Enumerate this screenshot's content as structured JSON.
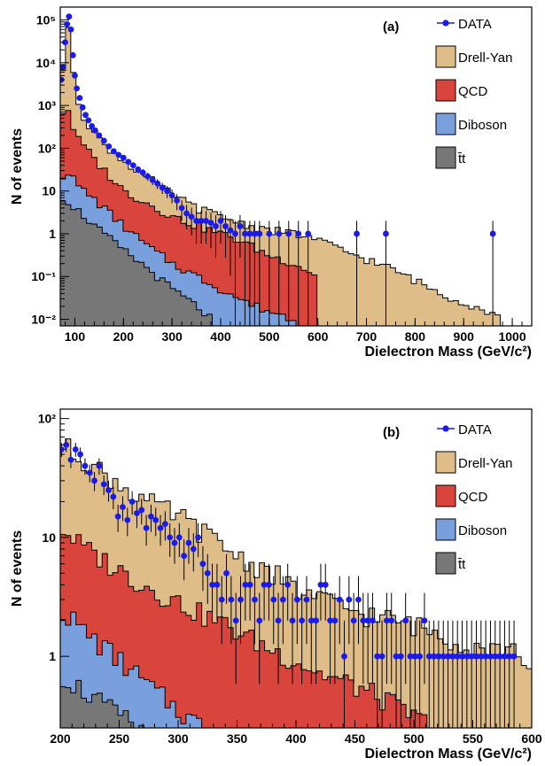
{
  "colors": {
    "drellyan": "#dfbd89",
    "qcd": "#d9453c",
    "diboson": "#7a9fdd",
    "ttbar": "#777777",
    "data": "#1a1aee",
    "outline": "#000000"
  },
  "chart_data": [
    {
      "type": "histogram",
      "panel_label": "(a)",
      "xlabel": "Dielectron Mass (GeV/c²)",
      "ylabel": "N of events",
      "xlim": [
        70,
        1040
      ],
      "ylim": [
        0.007,
        200000
      ],
      "yscale": "log",
      "grid": false,
      "legend_position": "top-right",
      "x_ticks": [
        100,
        200,
        300,
        400,
        500,
        600,
        700,
        800,
        900,
        1000
      ],
      "x_tick_labels": [
        "100",
        "200",
        "300",
        "400",
        "500",
        "600",
        "700",
        "800",
        "900",
        "1000"
      ],
      "y_ticks": [
        0.01,
        0.1,
        1,
        10,
        100,
        1000,
        10000,
        100000
      ],
      "y_tick_labels": [
        "10⁻²",
        "10⁻¹",
        "1",
        "10",
        "10²",
        "10³",
        "10⁴",
        "10⁵"
      ],
      "legend": [
        {
          "name": "DATA",
          "kind": "data"
        },
        {
          "name": "Drell-Yan",
          "kind": "box",
          "color_key": "drellyan"
        },
        {
          "name": "QCD",
          "kind": "box",
          "color_key": "qcd"
        },
        {
          "name": "Diboson",
          "kind": "box",
          "color_key": "diboson"
        },
        {
          "name": "t̄t",
          "kind": "box",
          "color_key": "ttbar"
        }
      ],
      "stack_envelopes": {
        "drellyan": [
          [
            70,
            2000
          ],
          [
            80,
            20000
          ],
          [
            90,
            100000
          ],
          [
            100,
            2000
          ],
          [
            120,
            500
          ],
          [
            150,
            150
          ],
          [
            200,
            50
          ],
          [
            250,
            20
          ],
          [
            300,
            8
          ],
          [
            350,
            4
          ],
          [
            400,
            2.5
          ],
          [
            450,
            1.6
          ],
          [
            500,
            1.2
          ],
          [
            550,
            1.0
          ],
          [
            600,
            0.7
          ],
          [
            650,
            0.4
          ],
          [
            700,
            0.25
          ],
          [
            750,
            0.15
          ],
          [
            800,
            0.08
          ],
          [
            850,
            0.04
          ],
          [
            900,
            0.025
          ],
          [
            950,
            0.015
          ],
          [
            980,
            0.01
          ]
        ],
        "qcd": [
          [
            70,
            500
          ],
          [
            80,
            900
          ],
          [
            90,
            700
          ],
          [
            100,
            200
          ],
          [
            150,
            40
          ],
          [
            200,
            10
          ],
          [
            250,
            5
          ],
          [
            300,
            2.5
          ],
          [
            350,
            1.5
          ],
          [
            400,
            1.0
          ],
          [
            450,
            0.6
          ],
          [
            500,
            0.3
          ],
          [
            550,
            0.2
          ],
          [
            600,
            0.1
          ]
        ],
        "diboson": [
          [
            70,
            20
          ],
          [
            90,
            30
          ],
          [
            100,
            15
          ],
          [
            150,
            5
          ],
          [
            200,
            1.5
          ],
          [
            250,
            0.5
          ],
          [
            300,
            0.2
          ],
          [
            350,
            0.1
          ],
          [
            400,
            0.05
          ],
          [
            450,
            0.025
          ],
          [
            500,
            0.015
          ],
          [
            550,
            0.01
          ]
        ],
        "ttbar": [
          [
            70,
            8
          ],
          [
            100,
            4
          ],
          [
            150,
            1.2
          ],
          [
            200,
            0.4
          ],
          [
            250,
            0.15
          ],
          [
            300,
            0.05
          ],
          [
            350,
            0.02
          ],
          [
            380,
            0.01
          ]
        ]
      },
      "data_points": [
        [
          72,
          4000
        ],
        [
          76,
          8000
        ],
        [
          80,
          30000
        ],
        [
          84,
          80000
        ],
        [
          88,
          120000
        ],
        [
          92,
          60000
        ],
        [
          96,
          15000
        ],
        [
          100,
          5000
        ],
        [
          104,
          2500
        ],
        [
          110,
          1500
        ],
        [
          116,
          900
        ],
        [
          122,
          600
        ],
        [
          128,
          450
        ],
        [
          135,
          330
        ],
        [
          142,
          260
        ],
        [
          150,
          200
        ],
        [
          160,
          150
        ],
        [
          170,
          110
        ],
        [
          180,
          85
        ],
        [
          190,
          70
        ],
        [
          200,
          60
        ],
        [
          210,
          48
        ],
        [
          220,
          40
        ],
        [
          230,
          32
        ],
        [
          240,
          27
        ],
        [
          250,
          22
        ],
        [
          260,
          18
        ],
        [
          270,
          15
        ],
        [
          280,
          12
        ],
        [
          290,
          10
        ],
        [
          300,
          8
        ],
        [
          310,
          6
        ],
        [
          320,
          4
        ],
        [
          330,
          3
        ],
        [
          340,
          2.5
        ],
        [
          350,
          2
        ],
        [
          360,
          2
        ],
        [
          370,
          2
        ],
        [
          380,
          1.8
        ],
        [
          390,
          1.5
        ],
        [
          400,
          2
        ],
        [
          410,
          1.5
        ],
        [
          420,
          1.2
        ],
        [
          430,
          1
        ],
        [
          440,
          1.5
        ],
        [
          450,
          1
        ],
        [
          460,
          1
        ],
        [
          470,
          1
        ],
        [
          480,
          1
        ],
        [
          500,
          1
        ],
        [
          520,
          1
        ],
        [
          540,
          1
        ],
        [
          560,
          1
        ],
        [
          580,
          1
        ],
        [
          680,
          1
        ],
        [
          740,
          1
        ],
        [
          960,
          1
        ]
      ]
    },
    {
      "type": "histogram",
      "panel_label": "(b)",
      "xlabel": "Dielectron Mass (GeV/c²)",
      "ylabel": "N of events",
      "xlim": [
        200,
        600
      ],
      "ylim": [
        0.25,
        120
      ],
      "yscale": "log",
      "grid": false,
      "legend_position": "top-right",
      "x_ticks": [
        200,
        250,
        300,
        350,
        400,
        450,
        500,
        550,
        600
      ],
      "x_tick_labels": [
        "200",
        "250",
        "300",
        "350",
        "400",
        "450",
        "500",
        "550",
        "600"
      ],
      "y_ticks": [
        1,
        10,
        100
      ],
      "y_tick_labels": [
        "1",
        "10",
        "10²"
      ],
      "legend": [
        {
          "name": "DATA",
          "kind": "data"
        },
        {
          "name": "Drell-Yan",
          "kind": "box",
          "color_key": "drellyan"
        },
        {
          "name": "QCD",
          "kind": "box",
          "color_key": "qcd"
        },
        {
          "name": "Diboson",
          "kind": "box",
          "color_key": "diboson"
        },
        {
          "name": "t̄t",
          "kind": "box",
          "color_key": "ttbar"
        }
      ],
      "stack_envelopes": {
        "drellyan": [
          [
            200,
            60
          ],
          [
            220,
            45
          ],
          [
            240,
            32
          ],
          [
            260,
            24
          ],
          [
            280,
            18
          ],
          [
            300,
            15
          ],
          [
            320,
            11
          ],
          [
            340,
            8
          ],
          [
            360,
            6
          ],
          [
            380,
            5
          ],
          [
            400,
            3.5
          ],
          [
            420,
            3
          ],
          [
            440,
            2.5
          ],
          [
            460,
            2.2
          ],
          [
            480,
            2
          ],
          [
            500,
            1.8
          ],
          [
            520,
            1.5
          ],
          [
            540,
            1.3
          ],
          [
            560,
            1.2
          ],
          [
            580,
            1.1
          ],
          [
            600,
            0.9
          ]
        ],
        "qcd": [
          [
            200,
            12
          ],
          [
            220,
            8
          ],
          [
            240,
            6
          ],
          [
            260,
            4.5
          ],
          [
            280,
            3.5
          ],
          [
            300,
            2.8
          ],
          [
            320,
            2.2
          ],
          [
            340,
            1.8
          ],
          [
            360,
            1.4
          ],
          [
            380,
            1.1
          ],
          [
            400,
            0.9
          ],
          [
            420,
            0.7
          ],
          [
            440,
            0.6
          ],
          [
            460,
            0.5
          ],
          [
            480,
            0.4
          ],
          [
            500,
            0.3
          ],
          [
            520,
            0.25
          ]
        ],
        "diboson": [
          [
            200,
            2.5
          ],
          [
            220,
            1.6
          ],
          [
            240,
            1.1
          ],
          [
            260,
            0.75
          ],
          [
            280,
            0.5
          ],
          [
            300,
            0.35
          ],
          [
            320,
            0.25
          ]
        ],
        "ttbar": [
          [
            200,
            0.7
          ],
          [
            220,
            0.5
          ],
          [
            240,
            0.36
          ],
          [
            260,
            0.27
          ],
          [
            280,
            0.2
          ]
        ]
      },
      "data_points": [
        [
          201,
          55
        ],
        [
          205,
          60
        ],
        [
          209,
          45
        ],
        [
          213,
          55
        ],
        [
          217,
          50
        ],
        [
          221,
          40
        ],
        [
          225,
          35
        ],
        [
          229,
          30
        ],
        [
          233,
          40
        ],
        [
          237,
          28
        ],
        [
          241,
          25
        ],
        [
          245,
          22
        ],
        [
          249,
          15
        ],
        [
          253,
          18
        ],
        [
          257,
          14
        ],
        [
          261,
          20
        ],
        [
          265,
          16
        ],
        [
          269,
          17
        ],
        [
          273,
          12
        ],
        [
          277,
          15
        ],
        [
          281,
          14
        ],
        [
          285,
          12
        ],
        [
          289,
          13
        ],
        [
          293,
          10
        ],
        [
          297,
          9
        ],
        [
          301,
          10
        ],
        [
          305,
          7
        ],
        [
          309,
          9
        ],
        [
          313,
          8
        ],
        [
          317,
          10
        ],
        [
          321,
          6
        ],
        [
          325,
          5
        ],
        [
          329,
          4
        ],
        [
          333,
          4
        ],
        [
          337,
          3
        ],
        [
          341,
          5
        ],
        [
          345,
          3
        ],
        [
          349,
          2
        ],
        [
          353,
          3
        ],
        [
          357,
          4
        ],
        [
          361,
          4
        ],
        [
          365,
          3
        ],
        [
          369,
          2
        ],
        [
          373,
          4
        ],
        [
          377,
          4
        ],
        [
          381,
          3
        ],
        [
          385,
          2
        ],
        [
          389,
          3
        ],
        [
          393,
          4
        ],
        [
          397,
          2
        ],
        [
          401,
          3
        ],
        [
          405,
          2
        ],
        [
          409,
          3
        ],
        [
          413,
          2
        ],
        [
          417,
          2
        ],
        [
          421,
          4
        ],
        [
          425,
          4
        ],
        [
          429,
          2
        ],
        [
          433,
          2
        ],
        [
          437,
          3
        ],
        [
          441,
          1
        ],
        [
          445,
          3
        ],
        [
          449,
          2
        ],
        [
          453,
          3
        ],
        [
          457,
          2
        ],
        [
          461,
          2
        ],
        [
          465,
          2
        ],
        [
          469,
          1
        ],
        [
          473,
          1
        ],
        [
          477,
          2
        ],
        [
          481,
          2
        ],
        [
          485,
          1
        ],
        [
          489,
          1
        ],
        [
          493,
          2
        ],
        [
          497,
          1
        ],
        [
          501,
          1
        ],
        [
          505,
          1
        ],
        [
          509,
          2
        ],
        [
          513,
          1
        ],
        [
          517,
          1
        ],
        [
          521,
          1
        ],
        [
          525,
          1
        ],
        [
          529,
          1
        ],
        [
          533,
          1
        ],
        [
          537,
          1
        ],
        [
          541,
          1
        ],
        [
          545,
          1
        ],
        [
          549,
          1
        ],
        [
          553,
          1
        ],
        [
          557,
          1
        ],
        [
          561,
          1
        ],
        [
          565,
          1
        ],
        [
          569,
          1
        ],
        [
          573,
          1
        ],
        [
          577,
          1
        ],
        [
          581,
          1
        ],
        [
          585,
          1
        ]
      ]
    }
  ]
}
